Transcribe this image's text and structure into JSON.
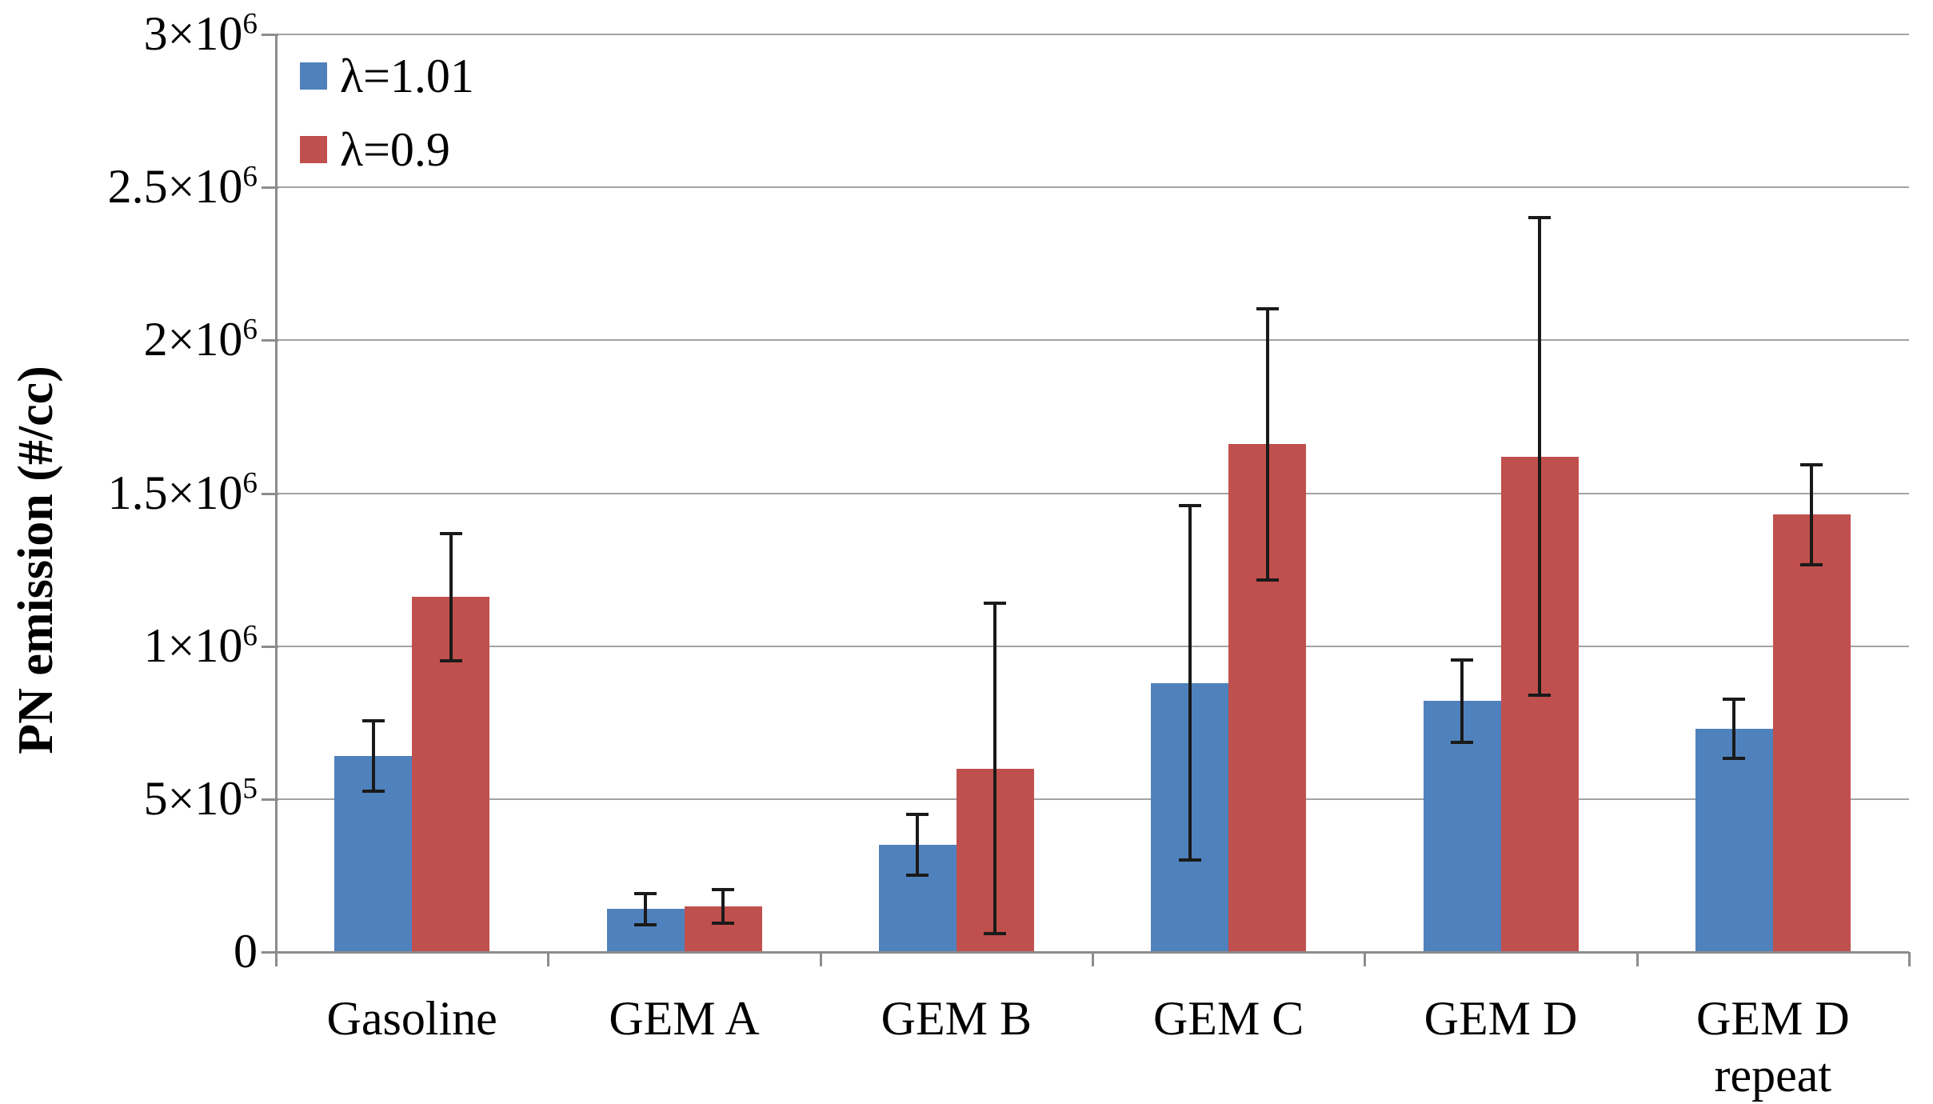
{
  "figure": {
    "background": "#ffffff"
  },
  "colors": {
    "gridline": "#a3a3a3",
    "axis": "#8c8c8c",
    "error_bar": "#1a1a1a",
    "text": "#000000",
    "series_blue": "#4F81BD",
    "series_red": "#C0504D"
  },
  "chart_data": {
    "type": "bar",
    "title": "",
    "xlabel": "",
    "ylabel": "PN emission (#/cc)",
    "ylim": [
      0,
      3000000
    ],
    "grid": true,
    "legend_position": "top-left-inside",
    "categories": [
      "Gasoline",
      "GEM A",
      "GEM B",
      "GEM C",
      "GEM D",
      "GEM D\nrepeat"
    ],
    "yticks": [
      {
        "value": 0,
        "base": "0",
        "exp": ""
      },
      {
        "value": 500000,
        "base": "5×10",
        "exp": "5"
      },
      {
        "value": 1000000,
        "base": "1×10",
        "exp": "6"
      },
      {
        "value": 1500000,
        "base": "1.5×10",
        "exp": "6"
      },
      {
        "value": 2000000,
        "base": "2×10",
        "exp": "6"
      },
      {
        "value": 2500000,
        "base": "2.5×10",
        "exp": "6"
      },
      {
        "value": 3000000,
        "base": "3×10",
        "exp": "6"
      }
    ],
    "series": [
      {
        "name": "λ=1.01",
        "color": "#4F81BD",
        "values": [
          640000,
          140000,
          350000,
          880000,
          820000,
          730000
        ],
        "errors": [
          115000,
          50000,
          100000,
          580000,
          135000,
          97000
        ]
      },
      {
        "name": "λ=0.9",
        "color": "#C0504D",
        "values": [
          1160000,
          150000,
          600000,
          1660000,
          1620000,
          1430000
        ],
        "errors": [
          208000,
          55000,
          540000,
          443000,
          780000,
          163000
        ]
      }
    ]
  }
}
